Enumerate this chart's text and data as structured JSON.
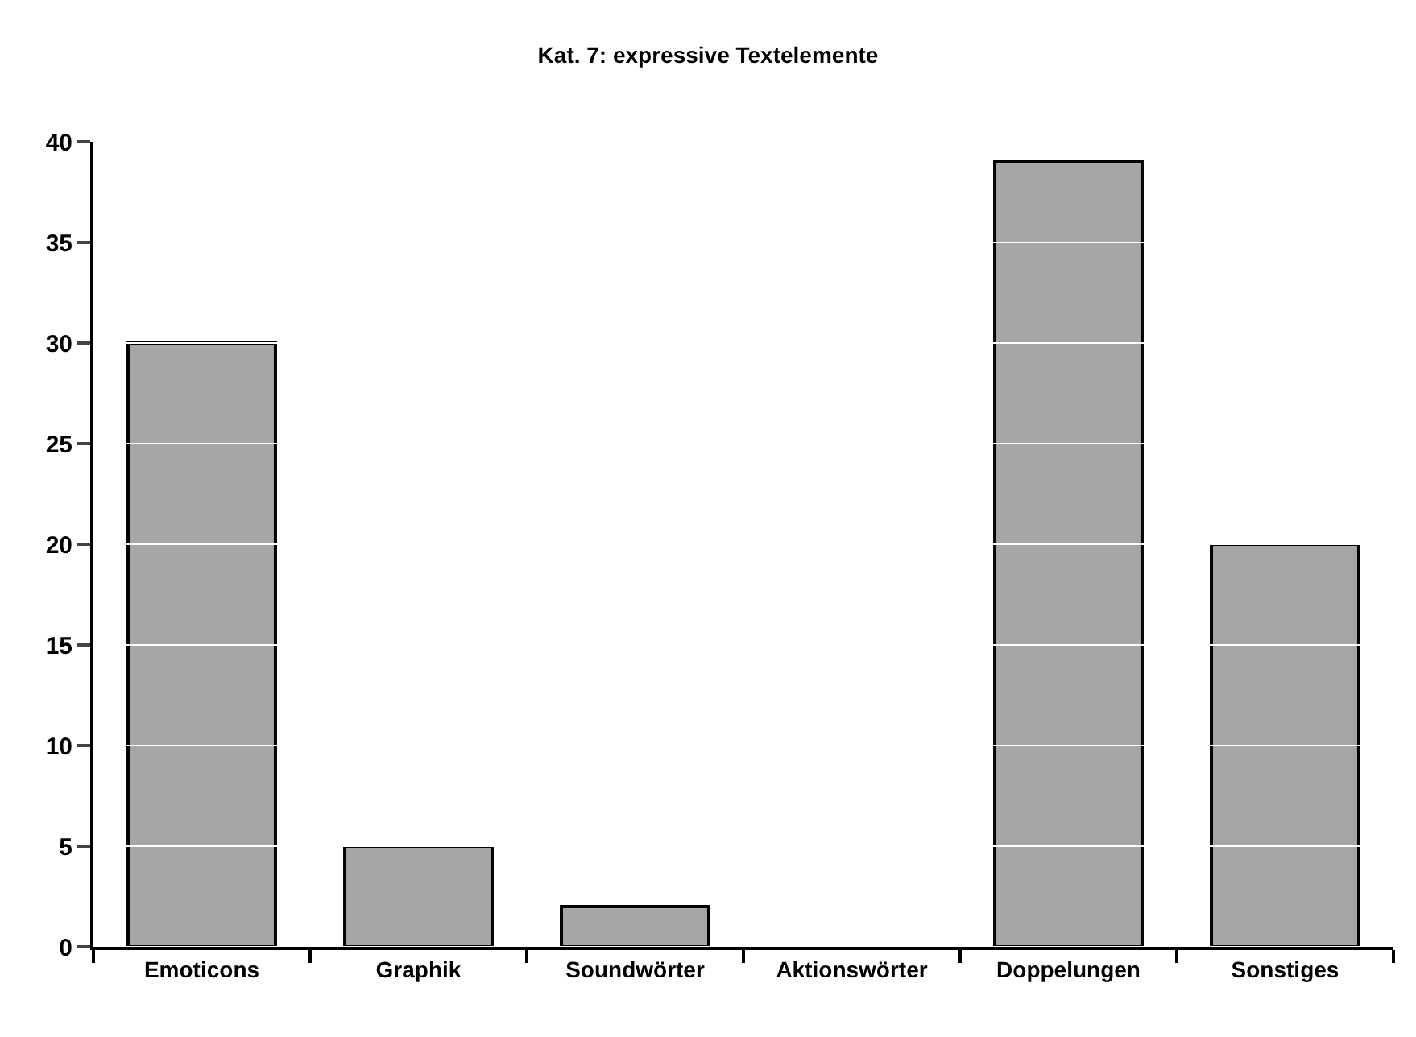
{
  "chart_data": {
    "type": "bar",
    "title": "Kat. 7: expressive Textelemente",
    "categories": [
      "Emoticons",
      "Graphik",
      "Soundwörter",
      "Aktionswörter",
      "Doppelungen",
      "Sonstiges"
    ],
    "values": [
      30,
      5,
      2,
      0,
      39,
      20
    ],
    "color": "#a6a6a6",
    "ylim": [
      0,
      40
    ],
    "yticks": [
      0,
      5,
      10,
      15,
      20,
      25,
      30,
      35,
      40
    ],
    "grid": "y"
  }
}
